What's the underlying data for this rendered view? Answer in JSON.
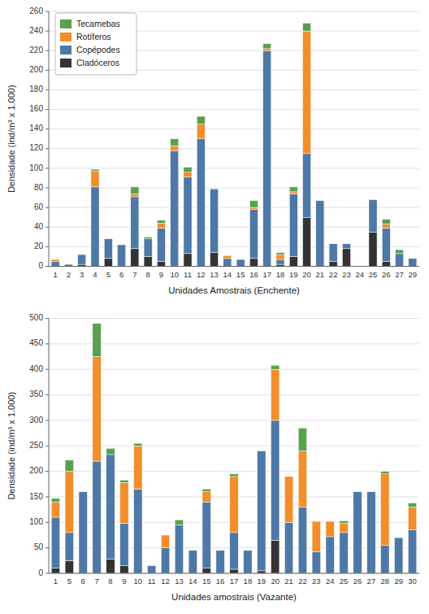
{
  "chart_data": [
    {
      "type": "bar",
      "stacked": true,
      "grid": true,
      "legend": "upper left",
      "categories": [
        "1",
        "2",
        "3",
        "4",
        "5",
        "6",
        "7",
        "8",
        "9",
        "10",
        "11",
        "12",
        "13",
        "14",
        "15",
        "16",
        "17",
        "18",
        "19",
        "20",
        "21",
        "22",
        "23",
        "24",
        "25",
        "26",
        "27",
        "29"
      ],
      "series": [
        {
          "name": "Cladóceros",
          "color": "#333333",
          "values": [
            0,
            0,
            2,
            0,
            8,
            0,
            18,
            10,
            5,
            0,
            13,
            0,
            14,
            0,
            0,
            8,
            0,
            2,
            10,
            50,
            0,
            5,
            18,
            0,
            35,
            5,
            0,
            0
          ]
        },
        {
          "name": "Copépodes",
          "color": "#4e79a7",
          "values": [
            5,
            2,
            10,
            81,
            20,
            22,
            53,
            18,
            34,
            118,
            78,
            130,
            65,
            8,
            7,
            50,
            220,
            5,
            64,
            65,
            67,
            18,
            5,
            0,
            33,
            34,
            13,
            8
          ]
        },
        {
          "name": "Rotíferos",
          "color": "#f28e2b",
          "values": [
            2,
            0,
            0,
            16,
            0,
            0,
            3,
            0,
            5,
            5,
            5,
            15,
            0,
            3,
            0,
            2,
            2,
            5,
            2,
            125,
            0,
            0,
            0,
            0,
            0,
            4,
            0,
            0
          ]
        },
        {
          "name": "Tecamebas",
          "color": "#59a14f",
          "values": [
            0,
            0,
            0,
            2,
            0,
            0,
            7,
            2,
            3,
            7,
            5,
            8,
            0,
            0,
            0,
            7,
            5,
            2,
            5,
            8,
            0,
            0,
            0,
            0,
            0,
            5,
            4,
            0
          ]
        }
      ],
      "ylim": [
        0,
        260
      ],
      "yticks": [
        0,
        20,
        40,
        60,
        80,
        100,
        120,
        140,
        160,
        180,
        200,
        220,
        240,
        260
      ],
      "x_label": "Unidades Amostrais (Enchente)",
      "y_label": "Densidade (ind/m³ x 1.000)"
    },
    {
      "type": "bar",
      "stacked": true,
      "grid": true,
      "categories": [
        "1",
        "5",
        "6",
        "7",
        "8",
        "9",
        "10",
        "11",
        "12",
        "13",
        "14",
        "15",
        "16",
        "17",
        "18",
        "19",
        "20",
        "21",
        "22",
        "23",
        "24",
        "25",
        "26",
        "27",
        "28",
        "29",
        "30"
      ],
      "series": [
        {
          "name": "Cladóceros",
          "color": "#333333",
          "values": [
            10,
            25,
            0,
            0,
            28,
            15,
            0,
            0,
            0,
            0,
            0,
            10,
            0,
            8,
            0,
            5,
            65,
            0,
            0,
            0,
            0,
            0,
            0,
            0,
            0,
            0,
            0
          ]
        },
        {
          "name": "Copépodes",
          "color": "#4e79a7",
          "values": [
            100,
            55,
            160,
            220,
            205,
            83,
            165,
            15,
            50,
            95,
            45,
            130,
            45,
            72,
            45,
            235,
            235,
            100,
            130,
            42,
            72,
            80,
            160,
            160,
            55,
            70,
            85
          ]
        },
        {
          "name": "Rotíferos",
          "color": "#f28e2b",
          "values": [
            30,
            120,
            0,
            205,
            0,
            80,
            85,
            0,
            25,
            0,
            0,
            20,
            0,
            110,
            0,
            0,
            100,
            90,
            110,
            60,
            30,
            18,
            0,
            0,
            140,
            0,
            45
          ]
        },
        {
          "name": "Tecamebas",
          "color": "#59a14f",
          "values": [
            7,
            22,
            0,
            65,
            12,
            5,
            5,
            0,
            0,
            10,
            0,
            5,
            0,
            5,
            0,
            0,
            8,
            0,
            45,
            0,
            0,
            5,
            0,
            0,
            5,
            0,
            8
          ]
        }
      ],
      "ylim": [
        0,
        500
      ],
      "yticks": [
        0,
        50,
        100,
        150,
        200,
        250,
        300,
        350,
        400,
        450,
        500
      ],
      "x_label": "Unidades amostrais (Vazante)",
      "y_label": "Densidade (ind/m³ x 1.000)"
    }
  ]
}
